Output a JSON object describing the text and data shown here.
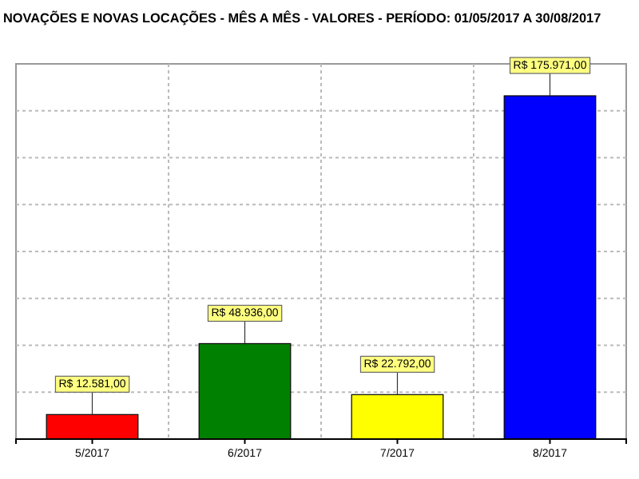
{
  "chart_data": {
    "type": "bar",
    "title": "NOVAÇÕES E NOVAS LOCAÇÕES - MÊS A MÊS - VALORES - PERÍODO: 01/05/2017 A 30/08/2017",
    "categories": [
      "5/2017",
      "6/2017",
      "7/2017",
      "8/2017"
    ],
    "values": [
      12581,
      48936,
      22792,
      175971
    ],
    "colors": [
      "#ff0000",
      "#008000",
      "#ffff00",
      "#0000ff"
    ],
    "value_labels": [
      "R$ 12.581,00",
      "R$ 48.936,00",
      "R$ 22.792,00",
      "R$ 175.971,00"
    ],
    "grid": true
  }
}
